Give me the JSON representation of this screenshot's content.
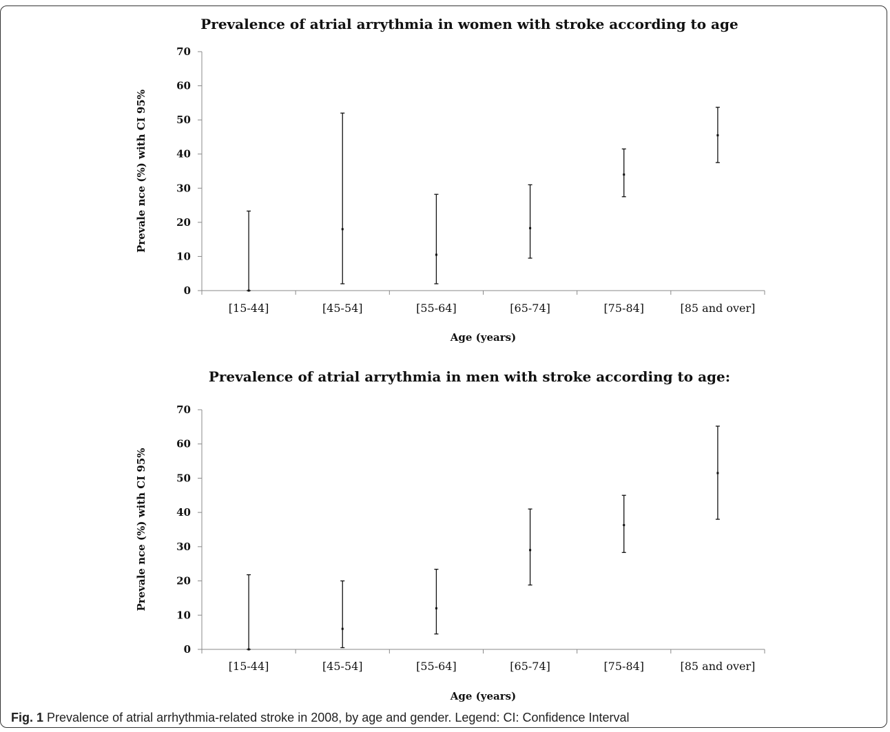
{
  "caption": {
    "label": "Fig. 1",
    "text": "Prevalence of atrial arrhythmia-related stroke in 2008, by age and gender. Legend: CI: Confidence Interval"
  },
  "chart_data": [
    {
      "type": "errorbar",
      "title": "Prevalence of atrial arrythmia  in women with stroke according  to age",
      "xlabel": "Age (years)",
      "ylabel": "Prevale nce (%) with CI 95%",
      "ylim": [
        0,
        70
      ],
      "yticks": [
        0,
        10,
        20,
        30,
        40,
        50,
        60,
        70
      ],
      "categories": [
        "[15-44]",
        "[45-54]",
        "[55-64]",
        "[65-74]",
        "[75-84]",
        "[85 and over]"
      ],
      "values": [
        0,
        18,
        10.5,
        18.3,
        34,
        45.5
      ],
      "lower": [
        0,
        2,
        2,
        9.5,
        27.5,
        37.5
      ],
      "upper": [
        23.3,
        52,
        28.2,
        31,
        41.5,
        53.7
      ]
    },
    {
      "type": "errorbar",
      "title": "Prevalence of atrial arrythmia  in men with  stroke according  to age:",
      "xlabel": "Age (years)",
      "ylabel": "Prevale nce (%) with CI 95%",
      "ylim": [
        0,
        70
      ],
      "yticks": [
        0,
        10,
        20,
        30,
        40,
        50,
        60,
        70
      ],
      "categories": [
        "[15-44]",
        "[45-54]",
        "[55-64]",
        "[65-74]",
        "[75-84]",
        "[85 and over]"
      ],
      "values": [
        0,
        6,
        12,
        29,
        36.3,
        51.5
      ],
      "lower": [
        0,
        0.5,
        4.5,
        18.8,
        28.3,
        38
      ],
      "upper": [
        21.8,
        20,
        23.4,
        41,
        45,
        65.2
      ]
    }
  ]
}
